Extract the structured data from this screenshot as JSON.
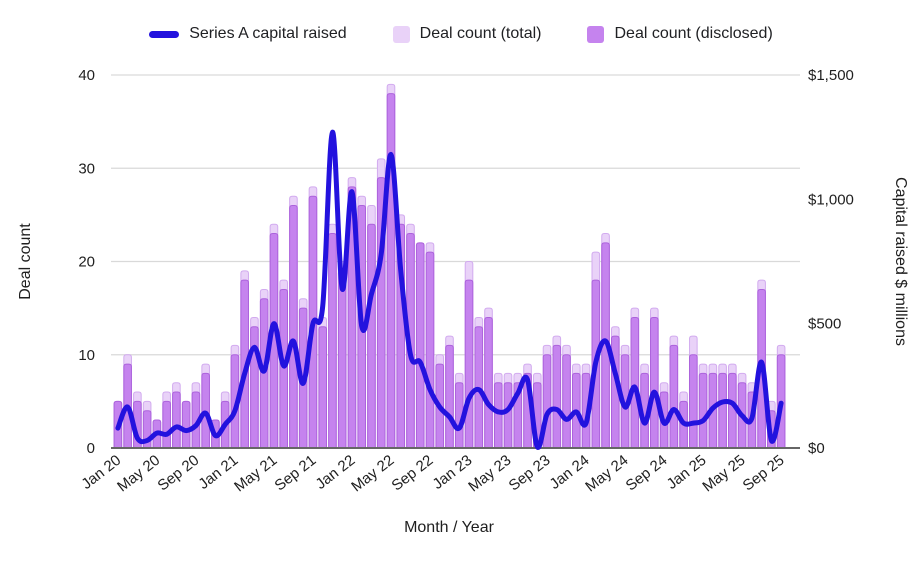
{
  "legend": {
    "items": [
      {
        "label": "Series A capital raised",
        "swatch": "line",
        "color": "#2312DE"
      },
      {
        "label": "Deal count (total)",
        "swatch": "square",
        "color": "#E9D2F8"
      },
      {
        "label": "Deal count (disclosed)",
        "swatch": "square",
        "color": "#C583EE"
      }
    ]
  },
  "axes": {
    "left": {
      "title": "Deal count",
      "tick_labels": [
        "0",
        "10",
        "20",
        "30",
        "40"
      ],
      "tick_values": [
        0,
        10,
        20,
        30,
        40
      ],
      "max": 40
    },
    "right": {
      "title": "Capital raised $ millions",
      "tick_labels": [
        "$0",
        "$500",
        "$1,000",
        "$1,500"
      ],
      "tick_values": [
        0,
        500,
        1000,
        1500
      ],
      "max": 1500
    },
    "x": {
      "title": "Month / Year",
      "label_every_n_months": 4
    }
  },
  "chart_data": {
    "type": "combo (bar + line)",
    "title": "",
    "grid": "horizontal, left-axis only",
    "legend_position": "top",
    "ylim_left": [
      0,
      40
    ],
    "ylim_right": [
      0,
      1500
    ],
    "categories": [
      "Jan 20",
      "Feb 20",
      "Mar 20",
      "Apr 20",
      "May 20",
      "Jun 20",
      "Jul 20",
      "Aug 20",
      "Sep 20",
      "Oct 20",
      "Nov 20",
      "Dec 20",
      "Jan 21",
      "Feb 21",
      "Mar 21",
      "Apr 21",
      "May 21",
      "Jun 21",
      "Jul 21",
      "Aug 21",
      "Sep 21",
      "Oct 21",
      "Nov 21",
      "Dec 21",
      "Jan 22",
      "Feb 22",
      "Mar 22",
      "Apr 22",
      "May 22",
      "Jun 22",
      "Jul 22",
      "Aug 22",
      "Sep 22",
      "Oct 22",
      "Nov 22",
      "Dec 22",
      "Jan 23",
      "Feb 23",
      "Mar 23",
      "Apr 23",
      "May 23",
      "Jun 23",
      "Jul 23",
      "Aug 23",
      "Sep 23",
      "Oct 23",
      "Nov 23",
      "Dec 23",
      "Jan 24",
      "Feb 24",
      "Mar 24",
      "Apr 24",
      "May 24",
      "Jun 24",
      "Jul 24",
      "Aug 24",
      "Sep 24",
      "Oct 24",
      "Nov 24",
      "Dec 24",
      "Jan 25",
      "Feb 25",
      "Mar 25",
      "Apr 25",
      "May 25",
      "Jun 25",
      "Jul 25",
      "Aug 25",
      "Sep 25"
    ],
    "series": [
      {
        "name": "Deal count (total)",
        "type": "bar",
        "axis": "left",
        "values": [
          5,
          10,
          6,
          5,
          3,
          6,
          7,
          5,
          7,
          9,
          3,
          6,
          11,
          19,
          14,
          17,
          24,
          18,
          27,
          16,
          28,
          14,
          24,
          20,
          29,
          27,
          26,
          31,
          39,
          25,
          24,
          22,
          22,
          10,
          12,
          8,
          20,
          14,
          15,
          8,
          8,
          8,
          9,
          8,
          11,
          12,
          11,
          9,
          9,
          21,
          23,
          13,
          11,
          15,
          9,
          15,
          7,
          12,
          6,
          12,
          9,
          9,
          9,
          9,
          8,
          7,
          18,
          5,
          11
        ]
      },
      {
        "name": "Deal count (disclosed)",
        "type": "bar",
        "axis": "left",
        "values": [
          5,
          9,
          5,
          4,
          3,
          5,
          6,
          5,
          6,
          8,
          3,
          5,
          10,
          18,
          13,
          16,
          23,
          17,
          26,
          15,
          27,
          13,
          23,
          19,
          28,
          26,
          24,
          29,
          38,
          24,
          23,
          22,
          21,
          9,
          11,
          7,
          18,
          13,
          14,
          7,
          7,
          7,
          8,
          7,
          10,
          11,
          10,
          8,
          8,
          18,
          22,
          12,
          10,
          14,
          8,
          14,
          6,
          11,
          5,
          10,
          8,
          8,
          8,
          8,
          7,
          6,
          17,
          4,
          10
        ]
      },
      {
        "name": "Series A capital raised ($M)",
        "type": "line",
        "axis": "right",
        "values": [
          80,
          165,
          40,
          30,
          60,
          55,
          85,
          70,
          90,
          140,
          50,
          95,
          150,
          300,
          405,
          310,
          500,
          330,
          430,
          260,
          500,
          570,
          1270,
          640,
          1030,
          490,
          620,
          780,
          1180,
          715,
          375,
          345,
          235,
          165,
          125,
          80,
          200,
          235,
          175,
          145,
          155,
          220,
          275,
          5,
          135,
          155,
          115,
          145,
          100,
          345,
          430,
          300,
          165,
          245,
          100,
          225,
          100,
          155,
          100,
          100,
          110,
          160,
          185,
          180,
          130,
          120,
          345,
          30,
          180
        ]
      }
    ]
  },
  "colors": {
    "line": "#2312DE",
    "bar_total_fill": "#E9D2F8",
    "bar_total_stroke": "#D2ABEF",
    "bar_disclosed_fill": "#C583EE",
    "bar_disclosed_stroke": "#AC62DC",
    "gridline": "#D9D9D9",
    "axis_line": "#666666",
    "text": "#1F1F1F"
  }
}
